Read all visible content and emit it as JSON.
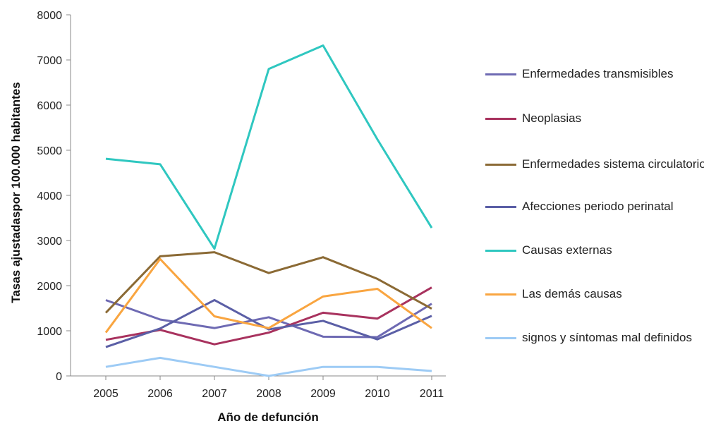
{
  "chart_data": {
    "type": "line",
    "xlabel": "Año de defunción",
    "ylabel": "Tasas ajustadaspor 100.000 habitantes",
    "ylim": [
      0,
      8000
    ],
    "yticks": [
      "0",
      "1000",
      "2000",
      "3000",
      "4000",
      "5000",
      "6000",
      "7000",
      "8000"
    ],
    "categories": [
      "2005",
      "2006",
      "2007",
      "2008",
      "2009",
      "2010",
      "2011"
    ],
    "legend_position": "right",
    "series": [
      {
        "name": "Enfermedades transmisibles",
        "color": "#6e6ab3",
        "values": [
          1680,
          1250,
          1060,
          1300,
          870,
          860,
          1600
        ]
      },
      {
        "name": "Neoplasias",
        "color": "#a8325e",
        "values": [
          800,
          1020,
          700,
          960,
          1400,
          1270,
          1960
        ]
      },
      {
        "name": "Enfermedades sistema circulatorio",
        "color": "#8b6a35",
        "values": [
          1400,
          2650,
          2740,
          2280,
          2630,
          2150,
          1490
        ]
      },
      {
        "name": "Afecciones periodo perinatal",
        "color": "#5b5fa6",
        "values": [
          640,
          1050,
          1680,
          1030,
          1220,
          810,
          1330
        ]
      },
      {
        "name": "Causas externas",
        "color": "#2fc7c0",
        "values": [
          4810,
          4690,
          2820,
          6800,
          7320,
          5240,
          3280
        ]
      },
      {
        "name": "Las demás causas",
        "color": "#f9a540",
        "values": [
          960,
          2590,
          1320,
          1060,
          1760,
          1930,
          1060
        ]
      },
      {
        "name": "signos y síntomas mal definidos",
        "color": "#9dcbf5",
        "values": [
          200,
          400,
          200,
          0,
          200,
          200,
          110
        ]
      }
    ]
  }
}
